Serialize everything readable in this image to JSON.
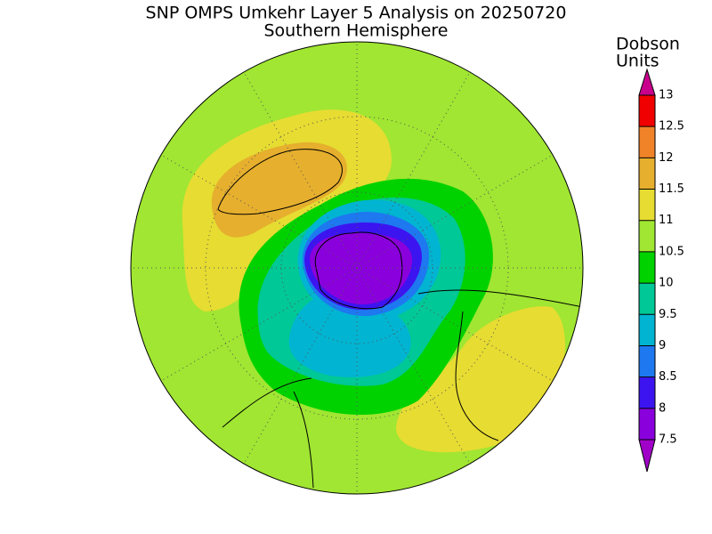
{
  "header": {
    "title": "SNP OMPS Umkehr Layer 5 Analysis on 20250720",
    "subtitle": "Southern Hemisphere"
  },
  "colorbar": {
    "label_lines": [
      "Dobson",
      "Units"
    ],
    "ticks": [
      7.5,
      8,
      8.5,
      9,
      9.5,
      10,
      10.5,
      11,
      11.5,
      12,
      12.5,
      13
    ],
    "colors": [
      "#8a00dc",
      "#3c14f0",
      "#1e78f0",
      "#00b4d2",
      "#00c896",
      "#00d200",
      "#a0e632",
      "#e6dc32",
      "#e6af2d",
      "#f08228",
      "#f00000"
    ],
    "under_color": "#a000c8",
    "over_color": "#c8008c"
  }
}
